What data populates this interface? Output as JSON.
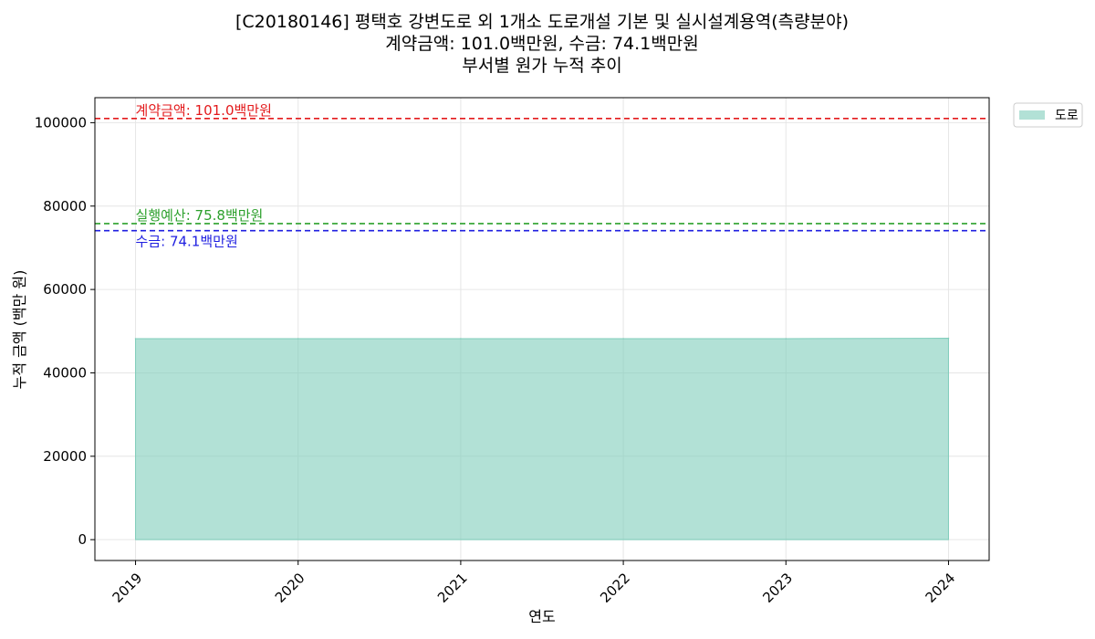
{
  "chart_data": {
    "type": "area",
    "title_lines": [
      "[C20180146] 평택호 강변도로 외 1개소 도로개설 기본 및 실시설계용역(측량분야)",
      "계약금액: 101.0백만원, 수금: 74.1백만원",
      "부서별 원가 누적 추이"
    ],
    "xlabel": "연도",
    "ylabel": "누적 금액 (백만 원)",
    "x": [
      2019,
      2020,
      2021,
      2022,
      2023,
      2024
    ],
    "xlim": [
      2018.75,
      2024.25
    ],
    "ylim": [
      -5000,
      106000
    ],
    "y_ticks": [
      0,
      20000,
      40000,
      60000,
      80000,
      100000
    ],
    "grid": true,
    "legend_position": "outside-top-right",
    "series": [
      {
        "name": "도로",
        "color": "#7fcdbb",
        "values": [
          48200,
          48200,
          48200,
          48200,
          48200,
          48300
        ]
      }
    ],
    "reference_lines": [
      {
        "label": "계약금액: 101.0백만원",
        "value": 101000,
        "color": "#e31a1c",
        "label_position": "above"
      },
      {
        "label": "실행예산: 75.8백만원",
        "value": 75800,
        "color": "#2ca02c",
        "label_position": "above"
      },
      {
        "label": "수금: 74.1백만원",
        "value": 74100,
        "color": "#1f1fe0",
        "label_position": "below"
      }
    ]
  }
}
